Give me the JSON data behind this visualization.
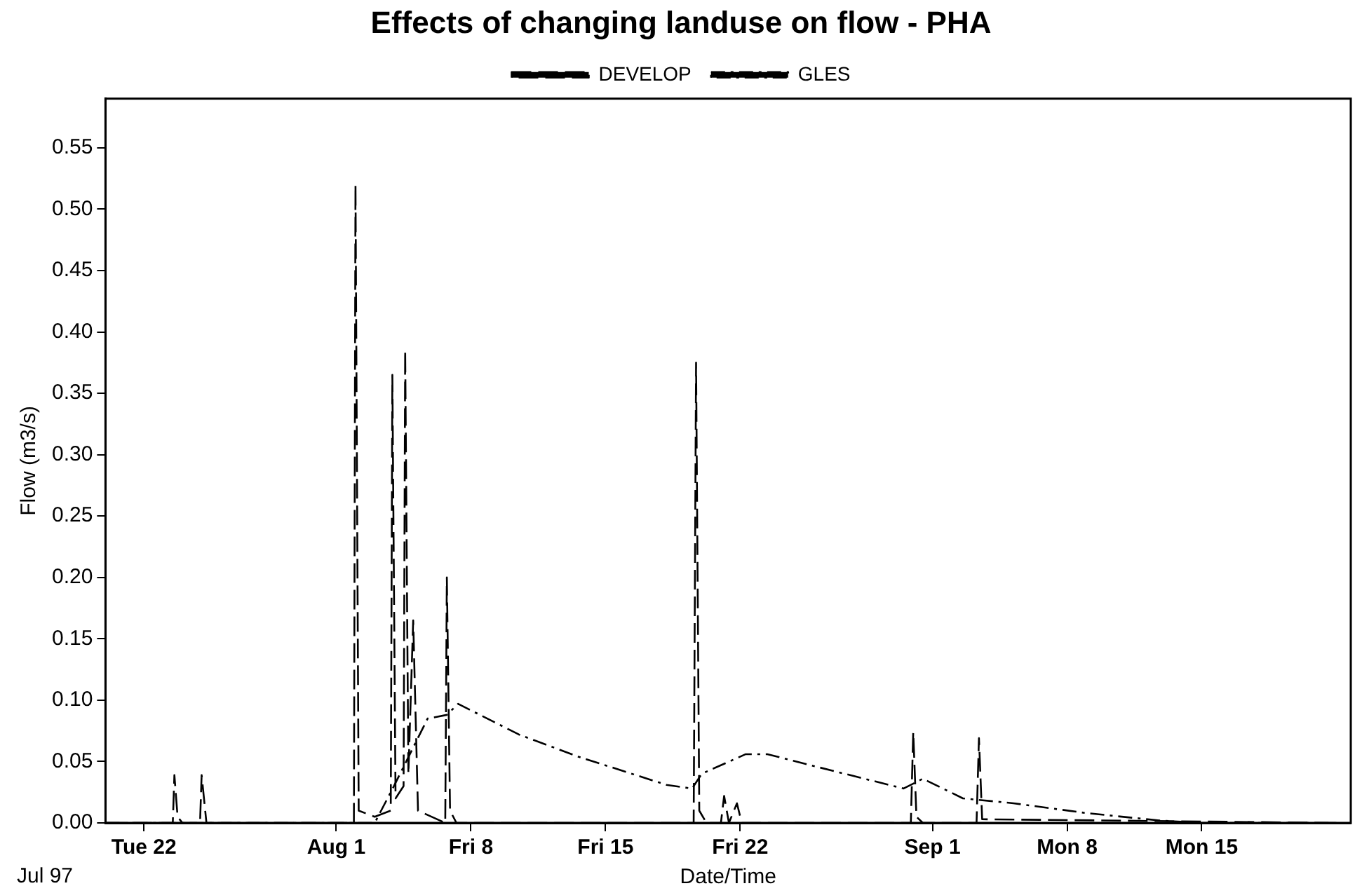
{
  "chart_data": {
    "type": "line",
    "title": "Effects of changing landuse on flow - PHA",
    "xlabel": "Date/Time",
    "ylabel": "Flow (m3/s)",
    "annotations": [
      "Jul 97"
    ],
    "xlim": [
      "--07-20",
      "--09-22T18:00"
    ],
    "xticks": [
      {
        "value": "--07-22",
        "label": "Tue 22"
      },
      {
        "value": "--08-01",
        "label": "Aug 1"
      },
      {
        "value": "--08-08",
        "label": "Fri 8"
      },
      {
        "value": "--08-15",
        "label": "Fri 15"
      },
      {
        "value": "--08-22",
        "label": "Fri 22"
      },
      {
        "value": "--09-01",
        "label": "Sep 1"
      },
      {
        "value": "--09-08",
        "label": "Mon 8"
      },
      {
        "value": "--09-15",
        "label": "Mon 15"
      }
    ],
    "ylim": [
      0,
      0.59
    ],
    "yticks": [
      {
        "value": 0,
        "label": "0.00"
      },
      {
        "value": 0.05,
        "label": "0.05"
      },
      {
        "value": 0.1,
        "label": "0.10"
      },
      {
        "value": 0.15,
        "label": "0.15"
      },
      {
        "value": 0.2,
        "label": "0.20"
      },
      {
        "value": 0.25,
        "label": "0.25"
      },
      {
        "value": 0.3,
        "label": "0.30"
      },
      {
        "value": 0.35,
        "label": "0.35"
      },
      {
        "value": 0.4,
        "label": "0.40"
      },
      {
        "value": 0.45,
        "label": "0.45"
      },
      {
        "value": 0.5,
        "label": "0.50"
      },
      {
        "value": 0.55,
        "label": "0.55"
      }
    ],
    "grid": false,
    "legend": "top",
    "marker": "none",
    "series": [
      {
        "name": "DEVELOP",
        "color": "#000000",
        "line_style": "dashed",
        "x": [
          "--07-20",
          "--07-23T12:00",
          "--07-23T14:00",
          "--07-23T18:00",
          "--07-24",
          "--07-24T22:00",
          "--07-25",
          "--07-25T06:00",
          "--08-01T22:00",
          "--08-02",
          "--08-02T04:00",
          "--08-03",
          "--08-03T20:00",
          "--08-03T22:00",
          "--08-04T02:00",
          "--08-04T12:00",
          "--08-04T14:00",
          "--08-04T18:00",
          "--08-05",
          "--08-05T06:00",
          "--08-06T16:00",
          "--08-06T18:00",
          "--08-06T22:00",
          "--08-07T06:00",
          "--08-19T14:00",
          "--08-19T17:00",
          "--08-19T21:00",
          "--08-20T06:00",
          "--08-21",
          "--08-21T04:00",
          "--08-21T10:00",
          "--08-21T20:00",
          "--08-22T02:00",
          "--08-30T21:00",
          "--08-31",
          "--08-31T04:00",
          "--08-31T12:00",
          "--09-03T07:00",
          "--09-03T10:00",
          "--09-03T14:00",
          "--09-22"
        ],
        "values": [
          0,
          0,
          0.039,
          0.005,
          0,
          0,
          0.039,
          0,
          0,
          0.52,
          0.01,
          0.005,
          0.01,
          0.365,
          0.02,
          0.03,
          0.385,
          0.04,
          0.165,
          0.01,
          0,
          0.2,
          0.01,
          0,
          0,
          0.375,
          0.01,
          0,
          0,
          0.022,
          0,
          0.016,
          0,
          0,
          0.074,
          0.005,
          0,
          0,
          0.069,
          0.003,
          0
        ]
      },
      {
        "name": "GLES",
        "color": "#000000",
        "line_style": "dotted",
        "x": [
          "--07-20",
          "--08-03",
          "--08-04",
          "--08-05T18:00",
          "--08-06T18:00",
          "--08-07T08:00",
          "--08-10T12:00",
          "--08-13T14:00",
          "--08-18T04:00",
          "--08-19T12:00",
          "--08-20",
          "--08-22T07:00",
          "--08-23T10:00",
          "--08-25T22:00",
          "--08-30T12:00",
          "--08-31T12:00",
          "--09-02T14:00",
          "--09-05T05:00",
          "--09-09",
          "--09-12T19:00",
          "--09-15",
          "--09-22"
        ],
        "values": [
          0,
          0,
          0.03,
          0.085,
          0.088,
          0.097,
          0.072,
          0.054,
          0.031,
          0.028,
          0.04,
          0.056,
          0.056,
          0.046,
          0.028,
          0.036,
          0.02,
          0.016,
          0.008,
          0.002,
          0,
          0
        ]
      }
    ]
  }
}
